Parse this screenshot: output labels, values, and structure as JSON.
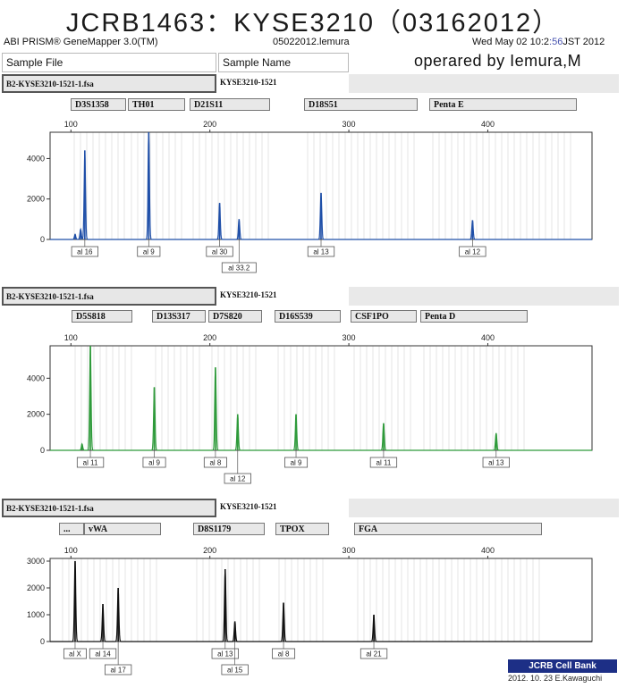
{
  "header": {
    "title": "JCRB1463：KYSE3210（03162012）",
    "software": "ABI PRISM® GeneMapper 3.0(TM)",
    "project": "05022012.lemura",
    "datetime": "Wed May 02 10:2",
    "datetime_tail": "JST 2012",
    "operator": "operared by Iemura,M",
    "sample_file_label": "Sample File",
    "sample_name_label": "Sample Name"
  },
  "footer": {
    "badge": "JCRB Cell Bank",
    "credit": "2012. 10. 23 E.Kawaguchi"
  },
  "chart_data": [
    {
      "type": "line",
      "title": "",
      "sample_file": "B2-KYSE3210-1521-1.fsa",
      "sample_name": "KYSE3210-1521",
      "dye_color": "#1f4fa8",
      "xlim": [
        85,
        475
      ],
      "ylim": [
        0,
        5300
      ],
      "x_ticks": [
        100,
        200,
        300,
        400
      ],
      "y_ticks": [
        0,
        2000,
        4000
      ],
      "markers": [
        "D3S1358",
        "TH01",
        "D21S11",
        "D18S51",
        "Penta E"
      ],
      "peaks": [
        {
          "x": 110,
          "height": 4400,
          "allele": "16"
        },
        {
          "x": 107,
          "height": 500,
          "allele": ""
        },
        {
          "x": 103,
          "height": 250,
          "allele": ""
        },
        {
          "x": 156,
          "height": 5300,
          "allele": "9"
        },
        {
          "x": 207,
          "height": 1800,
          "allele": "30"
        },
        {
          "x": 221,
          "height": 1000,
          "allele": "33.2"
        },
        {
          "x": 280,
          "height": 2300,
          "allele": "13"
        },
        {
          "x": 389,
          "height": 950,
          "allele": "12"
        }
      ]
    },
    {
      "type": "line",
      "title": "",
      "sample_file": "B2-KYSE3210-1521-1.fsa",
      "sample_name": "KYSE3210-1521",
      "dye_color": "#2e9a3a",
      "xlim": [
        85,
        475
      ],
      "ylim": [
        0,
        5800
      ],
      "x_ticks": [
        100,
        200,
        300,
        400
      ],
      "y_ticks": [
        0,
        2000,
        4000
      ],
      "markers": [
        "D5S818",
        "D13S317",
        "D7S820",
        "D16S539",
        "CSF1PO",
        "Penta D"
      ],
      "peaks": [
        {
          "x": 114,
          "height": 5800,
          "allele": "11"
        },
        {
          "x": 108,
          "height": 350,
          "allele": ""
        },
        {
          "x": 160,
          "height": 3500,
          "allele": "9"
        },
        {
          "x": 204,
          "height": 4600,
          "allele": "8"
        },
        {
          "x": 220,
          "height": 2000,
          "allele": "12"
        },
        {
          "x": 262,
          "height": 2000,
          "allele": "9"
        },
        {
          "x": 325,
          "height": 1500,
          "allele": "11"
        },
        {
          "x": 406,
          "height": 950,
          "allele": "13"
        }
      ]
    },
    {
      "type": "line",
      "title": "",
      "sample_file": "B2-KYSE3210-1521-1.fsa",
      "sample_name": "KYSE3210-1521",
      "dye_color": "#111111",
      "xlim": [
        85,
        475
      ],
      "ylim": [
        0,
        3100
      ],
      "x_ticks": [
        100,
        200,
        300,
        400
      ],
      "y_ticks": [
        0,
        1000,
        2000,
        3000
      ],
      "markers": [
        "...",
        "vWA",
        "D8S1179",
        "TPOX",
        "FGA"
      ],
      "peaks": [
        {
          "x": 103,
          "height": 3000,
          "allele": "X"
        },
        {
          "x": 123,
          "height": 1400,
          "allele": "14"
        },
        {
          "x": 134,
          "height": 2000,
          "allele": "17"
        },
        {
          "x": 211,
          "height": 2700,
          "allele": "13"
        },
        {
          "x": 218,
          "height": 750,
          "allele": "15"
        },
        {
          "x": 253,
          "height": 1450,
          "allele": "8"
        },
        {
          "x": 318,
          "height": 1000,
          "allele": "21"
        }
      ]
    }
  ]
}
